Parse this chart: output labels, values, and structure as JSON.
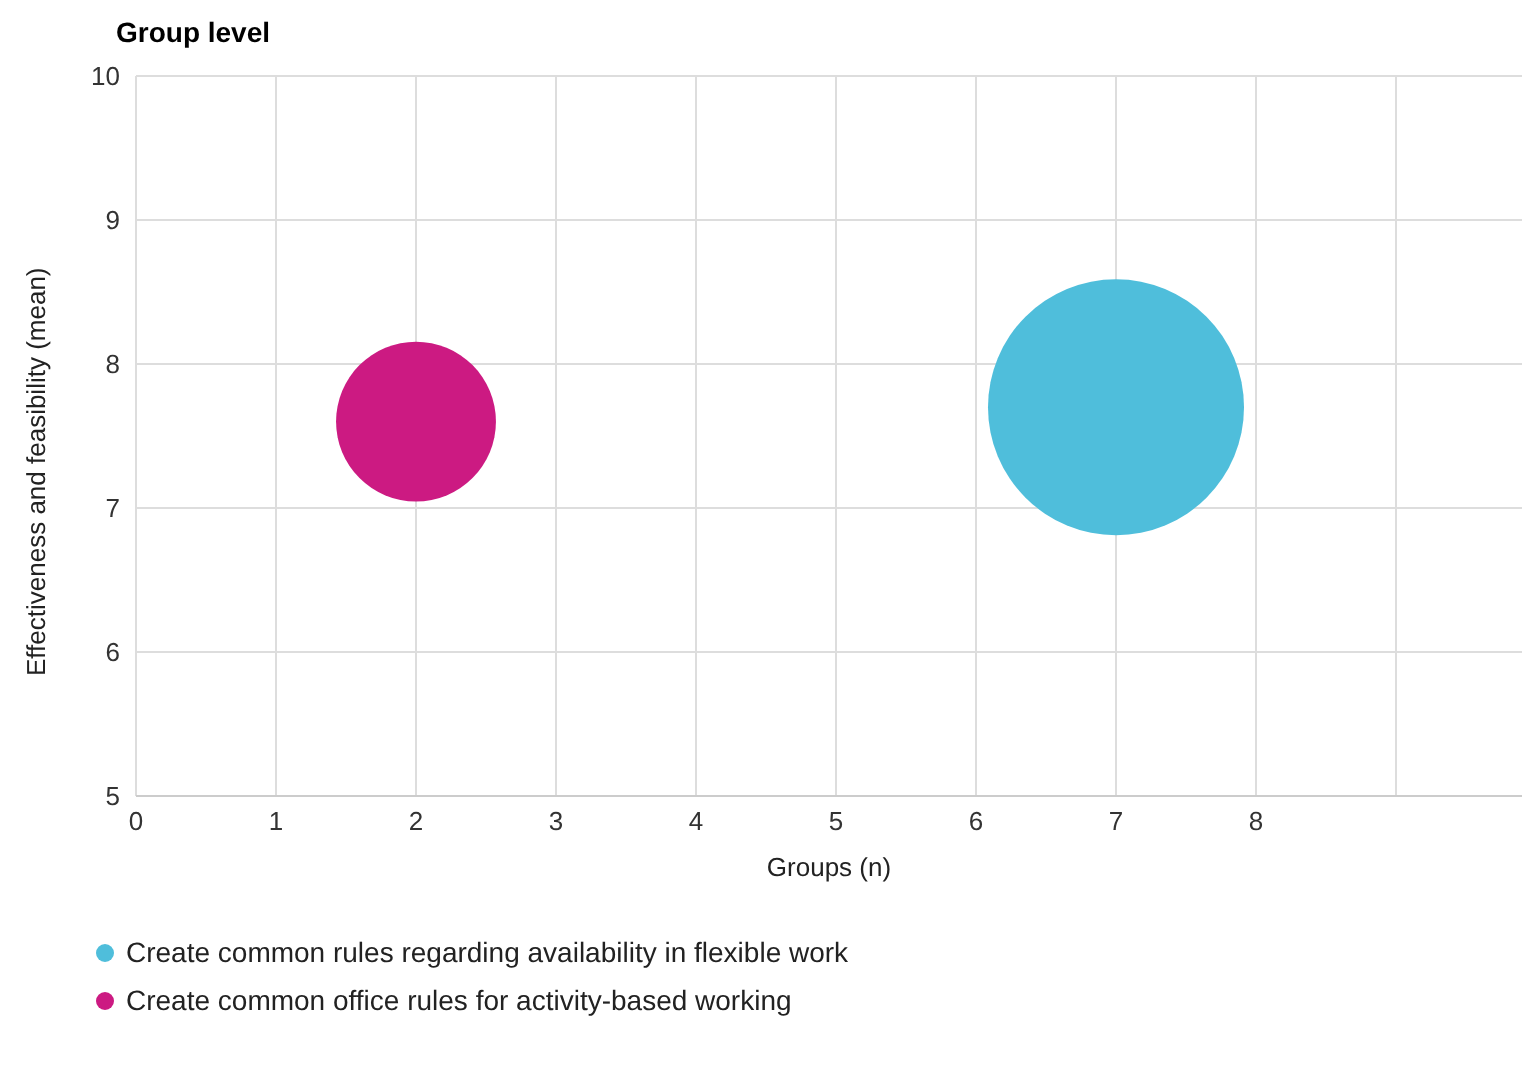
{
  "chart_data": {
    "type": "bubble",
    "title": "Group level",
    "xlabel": "Groups (n)",
    "ylabel": "Effectiveness and feasibility (mean)",
    "series": [
      {
        "name": "Create common rules regarding availability in flexible work",
        "color": "#4fbedb",
        "x": [
          7
        ],
        "values": [
          7.7
        ],
        "sizes": [
          1
        ]
      },
      {
        "name": "Create common office rules for activity-based working",
        "color": "#cc1a82",
        "x": [
          2
        ],
        "values": [
          7.6
        ],
        "sizes": [
          0.39
        ]
      }
    ],
    "xlim": [
      0,
      9.9
    ],
    "xticks": [
      0,
      1,
      2,
      3,
      4,
      5,
      6,
      7,
      8,
      {
        "value": 9,
        "label": null
      }
    ],
    "ylim": [
      5,
      10
    ],
    "yticks": [
      5,
      6,
      7,
      8,
      9,
      10
    ],
    "grid": true,
    "legend": "bottom"
  }
}
